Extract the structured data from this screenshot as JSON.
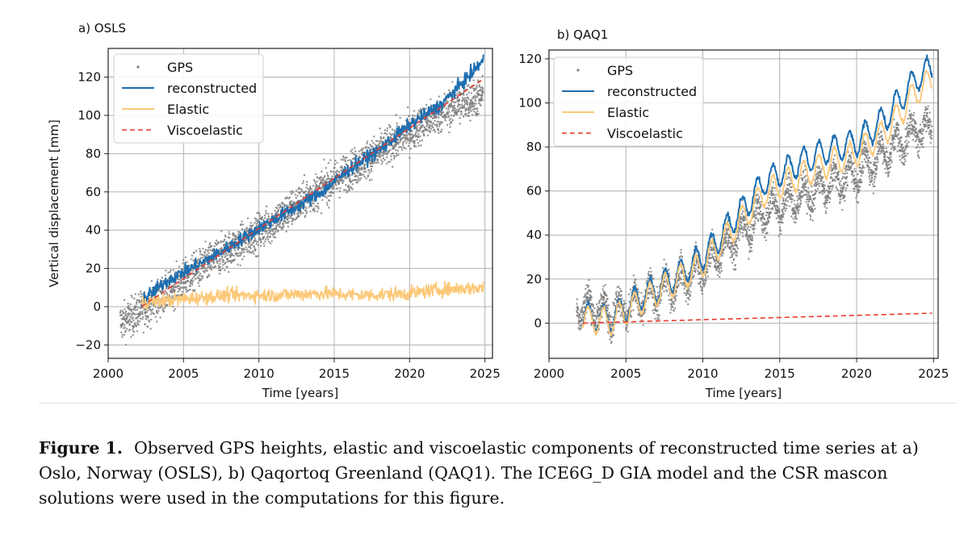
{
  "chart_data": [
    {
      "type": "line",
      "panel_label": "a) OSLS",
      "xlabel": "Time [years]",
      "ylabel": "Vertical displacement [mm]",
      "xlim": [
        2000,
        2025.5
      ],
      "ylim": [
        -27,
        135
      ],
      "xticks": [
        2000,
        2005,
        2010,
        2015,
        2020,
        2025
      ],
      "yticks": [
        -20,
        0,
        20,
        40,
        60,
        80,
        100,
        120
      ],
      "grid": true,
      "legend_position": "top-left",
      "series": [
        {
          "name": "GPS",
          "style": "scatter",
          "color": "#7f7f7f",
          "start": 2000.8,
          "end": 2024.9,
          "x": [
            2001,
            2003,
            2005,
            2007,
            2009,
            2011,
            2013,
            2015,
            2017,
            2019,
            2021,
            2023,
            2024.8
          ],
          "y": [
            -8,
            2,
            14,
            25,
            34,
            44,
            56,
            66,
            76,
            86,
            96,
            105,
            110
          ]
        },
        {
          "name": "reconstructed",
          "style": "line",
          "color": "#1f6fb0",
          "start": 2002.2,
          "end": 2024.9,
          "x": [
            2002.2,
            2004,
            2006,
            2008,
            2010,
            2012,
            2014,
            2016,
            2018,
            2020,
            2022,
            2024,
            2024.9
          ],
          "y": [
            3,
            14,
            22,
            31,
            41,
            50,
            59,
            72,
            82,
            95,
            105,
            121,
            129
          ]
        },
        {
          "name": "Elastic",
          "style": "line",
          "color": "#fcc97a",
          "start": 2002.2,
          "end": 2024.9,
          "x": [
            2002.2,
            2005,
            2008,
            2011,
            2014,
            2017,
            2020,
            2022,
            2024.9
          ],
          "y": [
            2,
            4,
            6,
            6,
            7,
            6,
            7,
            9,
            10
          ]
        },
        {
          "name": "Viscoelastic",
          "style": "dashed",
          "color": "#e8392f",
          "start": 2002.2,
          "end": 2024.9,
          "x": [
            2002.2,
            2024.9
          ],
          "y": [
            0,
            119
          ]
        }
      ]
    },
    {
      "type": "line",
      "panel_label": "b) QAQ1",
      "xlabel": "Time [years]",
      "ylabel": "",
      "xlim": [
        2000,
        2025.3
      ],
      "ylim": [
        -16,
        124
      ],
      "xticks": [
        2000,
        2005,
        2010,
        2015,
        2020,
        2025
      ],
      "yticks": [
        0,
        20,
        40,
        60,
        80,
        100,
        120
      ],
      "grid": true,
      "legend_position": "top-left",
      "series": [
        {
          "name": "GPS",
          "style": "scatter",
          "color": "#7f7f7f",
          "start": 2001.8,
          "end": 2024.9,
          "x": [
            2002,
            2004,
            2006,
            2008,
            2010,
            2012,
            2014,
            2016,
            2018,
            2020,
            2022,
            2024,
            2024.8
          ],
          "y": [
            8,
            5,
            10,
            17,
            25,
            38,
            50,
            56,
            62,
            68,
            78,
            88,
            88
          ]
        },
        {
          "name": "reconstructed",
          "style": "line",
          "color": "#1f6fb0",
          "start": 2002.2,
          "end": 2024.9,
          "x": [
            2002.2,
            2004,
            2006,
            2008,
            2010,
            2012,
            2014,
            2016,
            2018,
            2020,
            2022,
            2024,
            2024.9
          ],
          "y": [
            3,
            2,
            12,
            20,
            30,
            47,
            64,
            72,
            78,
            82,
            94,
            112,
            115
          ]
        },
        {
          "name": "Elastic",
          "style": "line",
          "color": "#fcc97a",
          "start": 2002.2,
          "end": 2024.9,
          "x": [
            2002.2,
            2004,
            2006,
            2008,
            2010,
            2012,
            2014,
            2016,
            2018,
            2020,
            2022,
            2024,
            2024.9
          ],
          "y": [
            2,
            1,
            10,
            18,
            27,
            43,
            59,
            66,
            72,
            77,
            88,
            106,
            110
          ]
        },
        {
          "name": "Viscoelastic",
          "style": "dashed",
          "color": "#e8392f",
          "start": 2002.2,
          "end": 2024.9,
          "x": [
            2002.2,
            2024.9
          ],
          "y": [
            0,
            4.5
          ]
        }
      ]
    }
  ],
  "caption": {
    "label": "Figure 1.",
    "text": "Observed GPS heights, elastic and viscoelastic components of reconstructed time series at a) Oslo, Norway (OSLS), b) Qaqortoq Greenland (QAQ1). The ICE6G_D GIA model and the CSR mascon solutions were used in the computations for this figure."
  }
}
